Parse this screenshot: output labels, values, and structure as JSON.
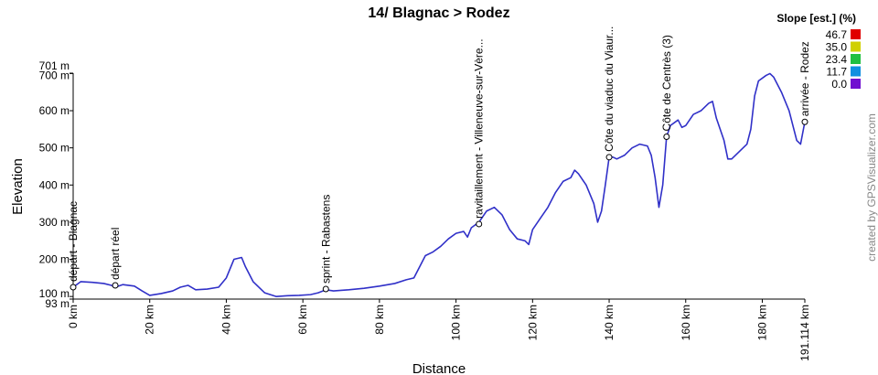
{
  "chart_data": {
    "type": "line",
    "title": "14/ Blagnac > Rodez",
    "xlabel": "Distance",
    "ylabel": "Elevation",
    "credit": "created by GPSVisualizer.com",
    "color": "#3030c8",
    "x": [
      0,
      2,
      5,
      8,
      10,
      11,
      13,
      16,
      18,
      20,
      23,
      26,
      28,
      30,
      32,
      35,
      38,
      40,
      42,
      44,
      45,
      47,
      50,
      53,
      56,
      59,
      62,
      64,
      66,
      68,
      72,
      76,
      80,
      84,
      87,
      89,
      90,
      92,
      94,
      96,
      98,
      100,
      102,
      103,
      104,
      106,
      108,
      110,
      112,
      114,
      116,
      118,
      119,
      120,
      122,
      124,
      126,
      128,
      130,
      131,
      132,
      134,
      136,
      137,
      138,
      139,
      140,
      141,
      142,
      144,
      146,
      148,
      150,
      151,
      152,
      153,
      154,
      155,
      156,
      158,
      159,
      160,
      162,
      164,
      166,
      167,
      168,
      170,
      171,
      172,
      174,
      176,
      177,
      178,
      179,
      181,
      182,
      183,
      185,
      187,
      188,
      189,
      190,
      191.114
    ],
    "values": [
      125,
      140,
      138,
      135,
      130,
      125,
      132,
      128,
      115,
      103,
      108,
      115,
      125,
      130,
      118,
      120,
      125,
      150,
      200,
      205,
      180,
      140,
      110,
      100,
      102,
      103,
      105,
      110,
      118,
      115,
      118,
      122,
      128,
      135,
      145,
      150,
      170,
      210,
      220,
      235,
      255,
      270,
      275,
      260,
      285,
      300,
      330,
      340,
      320,
      280,
      255,
      250,
      240,
      280,
      310,
      340,
      380,
      410,
      420,
      440,
      430,
      400,
      350,
      300,
      330,
      400,
      475,
      475,
      470,
      480,
      500,
      510,
      505,
      480,
      420,
      340,
      400,
      530,
      560,
      575,
      555,
      560,
      590,
      600,
      620,
      625,
      580,
      520,
      470,
      470,
      490,
      510,
      550,
      640,
      680,
      695,
      700,
      690,
      650,
      600,
      560,
      520,
      510,
      570
    ],
    "xlim": [
      0,
      191.114
    ],
    "ylim": [
      93,
      701
    ],
    "xticks": [
      {
        "value": 0,
        "label": "0 km"
      },
      {
        "value": 20,
        "label": "20 km"
      },
      {
        "value": 40,
        "label": "40 km"
      },
      {
        "value": 60,
        "label": "60 km"
      },
      {
        "value": 80,
        "label": "80 km"
      },
      {
        "value": 100,
        "label": "100 km"
      },
      {
        "value": 120,
        "label": "120 km"
      },
      {
        "value": 140,
        "label": "140 km"
      },
      {
        "value": 160,
        "label": "160 km"
      },
      {
        "value": 180,
        "label": "180 km"
      },
      {
        "value": 191.114,
        "label": "191.114 km"
      }
    ],
    "yticks": [
      {
        "value": 93,
        "label": "93 m"
      },
      {
        "value": 100,
        "label": "100 m"
      },
      {
        "value": 200,
        "label": "200 m"
      },
      {
        "value": 300,
        "label": "300 m"
      },
      {
        "value": 400,
        "label": "400 m"
      },
      {
        "value": 500,
        "label": "500 m"
      },
      {
        "value": 600,
        "label": "600 m"
      },
      {
        "value": 700,
        "label": "700 m"
      },
      {
        "value": 701,
        "label": "701 m"
      }
    ],
    "waypoints": [
      {
        "x": 0,
        "y": 125,
        "label": "départ - Blagnac"
      },
      {
        "x": 11,
        "y": 130,
        "label": "départ réel"
      },
      {
        "x": 66,
        "y": 120,
        "label": "sprint - Rabastens"
      },
      {
        "x": 106,
        "y": 295,
        "label": "ravitaillement - Villeneuve-sur-Vère..."
      },
      {
        "x": 140,
        "y": 475,
        "label": "Côte du viaduc du Viaur..."
      },
      {
        "x": 155,
        "y": 530,
        "label": "Côte de Centrès (3)"
      },
      {
        "x": 191.114,
        "y": 570,
        "label": "arrivée - Rodez"
      }
    ],
    "slope_legend": {
      "title": "Slope [est.] (%)",
      "items": [
        {
          "value": 46.7,
          "label": "46.7",
          "color": "#e00000"
        },
        {
          "value": 35,
          "label": "35.0",
          "color": "#d0d000"
        },
        {
          "value": 23.4,
          "label": "23.4",
          "color": "#20c040"
        },
        {
          "value": 11.7,
          "label": "11.7",
          "color": "#1090e0"
        },
        {
          "value": 0,
          "label": "0.0",
          "color": "#7010d0"
        }
      ]
    }
  }
}
